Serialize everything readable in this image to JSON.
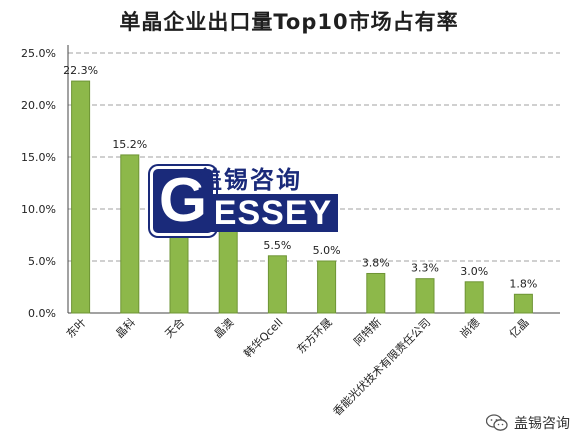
{
  "chart_data": {
    "type": "bar",
    "title": "单晶企业出口量Top10市场占有率",
    "categories": [
      "东叶",
      "晶科",
      "天合",
      "晶澳",
      "韩华Qcell",
      "东方环晟",
      "阿特斯",
      "香能光伏技术有限责任公司",
      "尚德",
      "亿晶"
    ],
    "values": [
      22.3,
      15.2,
      8.0,
      8.0,
      5.5,
      5.0,
      3.8,
      3.3,
      3.0,
      1.8
    ],
    "value_labels": [
      "22.3%",
      "15.2%",
      "",
      "",
      "5.5%",
      "5.0%",
      "3.8%",
      "3.3%",
      "3.0%",
      "1.8%"
    ],
    "ylim": [
      0,
      25
    ],
    "yticks": [
      0,
      5,
      10,
      15,
      20,
      25
    ],
    "ytick_labels": [
      "0.0%",
      "5.0%",
      "10.0%",
      "15.0%",
      "20.0%",
      "25.0%"
    ],
    "grid": true,
    "bar_color": "#8db84a",
    "bar_edge_color": "#6e9435",
    "grid_color": "#a0a0a0"
  },
  "logo": {
    "cn_text": "盖锡咨询",
    "g_letter": "G",
    "rest_text": "ESSEY"
  },
  "watermark": {
    "icon": "wechat-icon",
    "text": "盖锡咨询"
  }
}
